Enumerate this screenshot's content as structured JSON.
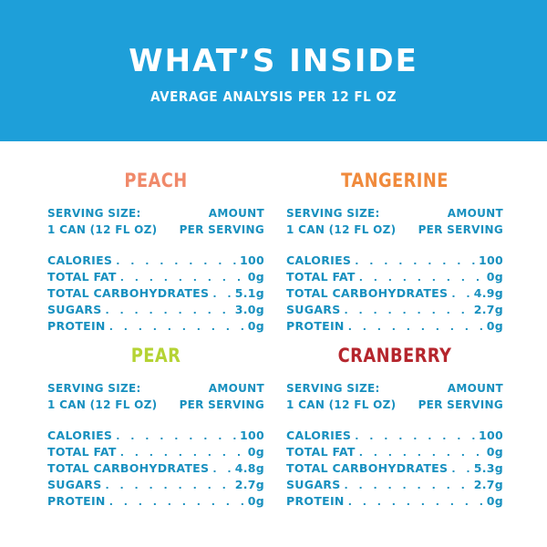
{
  "header": {
    "title": "WHAT’S INSIDE",
    "subtitle": "AVERAGE ANALYSIS PER 12 FL OZ",
    "background_color": "#1e9fd9"
  },
  "text_color": "#1890bf",
  "panels": {
    "peach": {
      "name": "PEACH",
      "name_color": "#f0896a",
      "serving_line1": "SERVING SIZE:",
      "serving_line2": "1 CAN (12 FL OZ)",
      "amount_line1": "AMOUNT",
      "amount_line2": "PER SERVING",
      "rows": [
        {
          "label": "CALORIES",
          "value": "100"
        },
        {
          "label": "TOTAL FAT",
          "value": "0g"
        },
        {
          "label": "TOTAL CARBOHYDRATES",
          "value": "5.1g"
        },
        {
          "label": "SUGARS",
          "value": "3.0g"
        },
        {
          "label": "PROTEIN",
          "value": "0g"
        }
      ]
    },
    "tangerine": {
      "name": "TANGERINE",
      "name_color": "#f08a3c",
      "serving_line1": "SERVING SIZE:",
      "serving_line2": "1 CAN (12 FL OZ)",
      "amount_line1": "AMOUNT",
      "amount_line2": "PER SERVING",
      "rows": [
        {
          "label": "CALORIES",
          "value": "100"
        },
        {
          "label": "TOTAL FAT",
          "value": "0g"
        },
        {
          "label": "TOTAL CARBOHYDRATES",
          "value": "4.9g"
        },
        {
          "label": "SUGARS",
          "value": "2.7g"
        },
        {
          "label": "PROTEIN",
          "value": "0g"
        }
      ]
    },
    "pear": {
      "name": "PEAR",
      "name_color": "#b5d334",
      "serving_line1": "SERVING SIZE:",
      "serving_line2": "1 CAN (12 FL OZ)",
      "amount_line1": "AMOUNT",
      "amount_line2": "PER SERVING",
      "rows": [
        {
          "label": "CALORIES",
          "value": "100"
        },
        {
          "label": "TOTAL FAT",
          "value": "0g"
        },
        {
          "label": "TOTAL CARBOHYDRATES",
          "value": "4.8g"
        },
        {
          "label": "SUGARS",
          "value": "2.7g"
        },
        {
          "label": "PROTEIN",
          "value": "0g"
        }
      ]
    },
    "cranberry": {
      "name": "CRANBERRY",
      "name_color": "#b5262d",
      "serving_line1": "SERVING SIZE:",
      "serving_line2": "1 CAN (12 FL OZ)",
      "amount_line1": "AMOUNT",
      "amount_line2": "PER SERVING",
      "rows": [
        {
          "label": "CALORIES",
          "value": "100"
        },
        {
          "label": "TOTAL FAT",
          "value": "0g"
        },
        {
          "label": "TOTAL CARBOHYDRATES",
          "value": "5.3g"
        },
        {
          "label": "SUGARS",
          "value": "2.7g"
        },
        {
          "label": "PROTEIN",
          "value": "0g"
        }
      ]
    }
  }
}
